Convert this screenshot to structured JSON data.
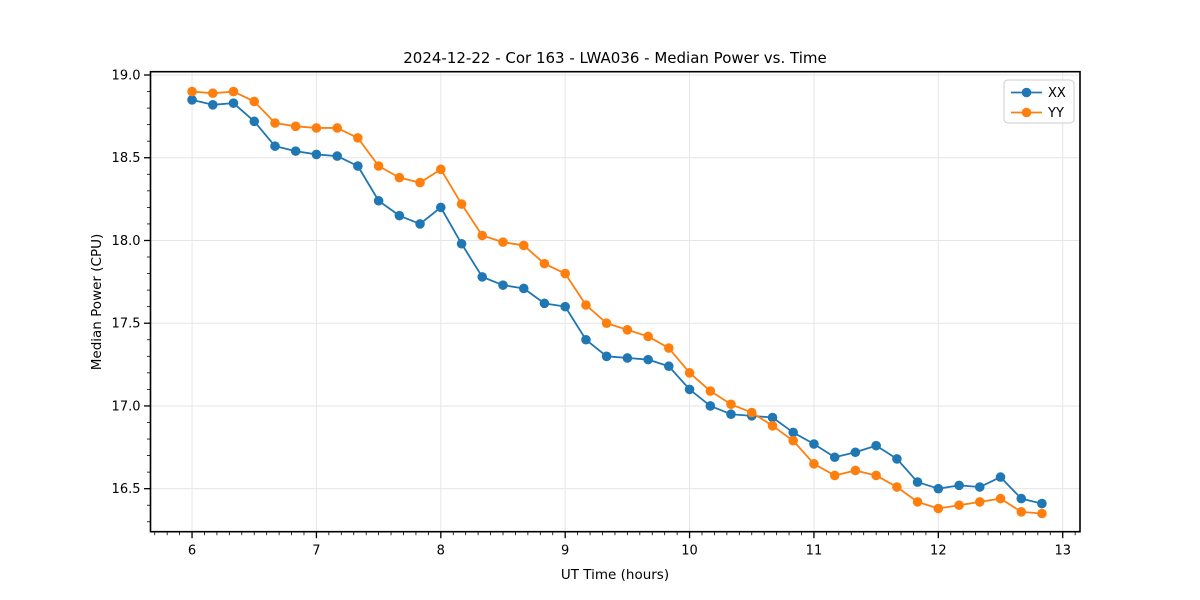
{
  "chart_data": {
    "type": "line",
    "title": "2024-12-22 - Cor 163 - LWA036 - Median Power vs. Time",
    "xlabel": "UT Time (hours)",
    "ylabel": "Median Power (CPU)",
    "xlim": [
      5.666,
      13.139
    ],
    "ylim": [
      16.24,
      19.02
    ],
    "grid": true,
    "legend_position": "upper right",
    "x_major_ticks": [
      6,
      7,
      8,
      9,
      10,
      11,
      12,
      13
    ],
    "x_tick_labels": [
      "6",
      "7",
      "8",
      "9",
      "10",
      "11",
      "12",
      "13"
    ],
    "y_major_ticks": [
      16.5,
      17.0,
      17.5,
      18.0,
      18.5,
      19.0
    ],
    "y_tick_labels": [
      "16.5",
      "17.0",
      "17.5",
      "18.0",
      "18.5",
      "19.0"
    ],
    "x": [
      6.0,
      6.167,
      6.333,
      6.5,
      6.667,
      6.833,
      7.0,
      7.167,
      7.333,
      7.5,
      7.667,
      7.833,
      8.0,
      8.167,
      8.333,
      8.5,
      8.667,
      8.833,
      9.0,
      9.167,
      9.333,
      9.5,
      9.667,
      9.833,
      10.0,
      10.167,
      10.333,
      10.5,
      10.667,
      10.833,
      11.0,
      11.167,
      11.333,
      11.5,
      11.667,
      11.833,
      12.0,
      12.167,
      12.333,
      12.5,
      12.667,
      12.833
    ],
    "series": [
      {
        "name": "XX",
        "color": "#1f77b4",
        "values": [
          18.85,
          18.82,
          18.83,
          18.72,
          18.57,
          18.54,
          18.52,
          18.51,
          18.45,
          18.24,
          18.15,
          18.1,
          18.2,
          17.98,
          17.78,
          17.73,
          17.71,
          17.62,
          17.6,
          17.4,
          17.3,
          17.29,
          17.28,
          17.24,
          17.1,
          17.0,
          16.95,
          16.94,
          16.93,
          16.84,
          16.77,
          16.69,
          16.72,
          16.76,
          16.68,
          16.54,
          16.5,
          16.52,
          16.51,
          16.57,
          16.44,
          16.41
        ]
      },
      {
        "name": "YY",
        "color": "#ff7f0e",
        "values": [
          18.9,
          18.89,
          18.9,
          18.84,
          18.71,
          18.69,
          18.68,
          18.68,
          18.62,
          18.45,
          18.38,
          18.35,
          18.43,
          18.22,
          18.03,
          17.99,
          17.97,
          17.86,
          17.8,
          17.61,
          17.5,
          17.46,
          17.42,
          17.35,
          17.2,
          17.09,
          17.01,
          16.96,
          16.88,
          16.79,
          16.65,
          16.58,
          16.61,
          16.58,
          16.51,
          16.42,
          16.38,
          16.4,
          16.42,
          16.44,
          16.36,
          16.35
        ]
      }
    ],
    "colors": {
      "grid": "#e6e6e6",
      "spine": "#000000",
      "tick": "#000000",
      "legend_border": "#cccccc",
      "legend_bg": "rgba(255,255,255,0.85)"
    }
  }
}
